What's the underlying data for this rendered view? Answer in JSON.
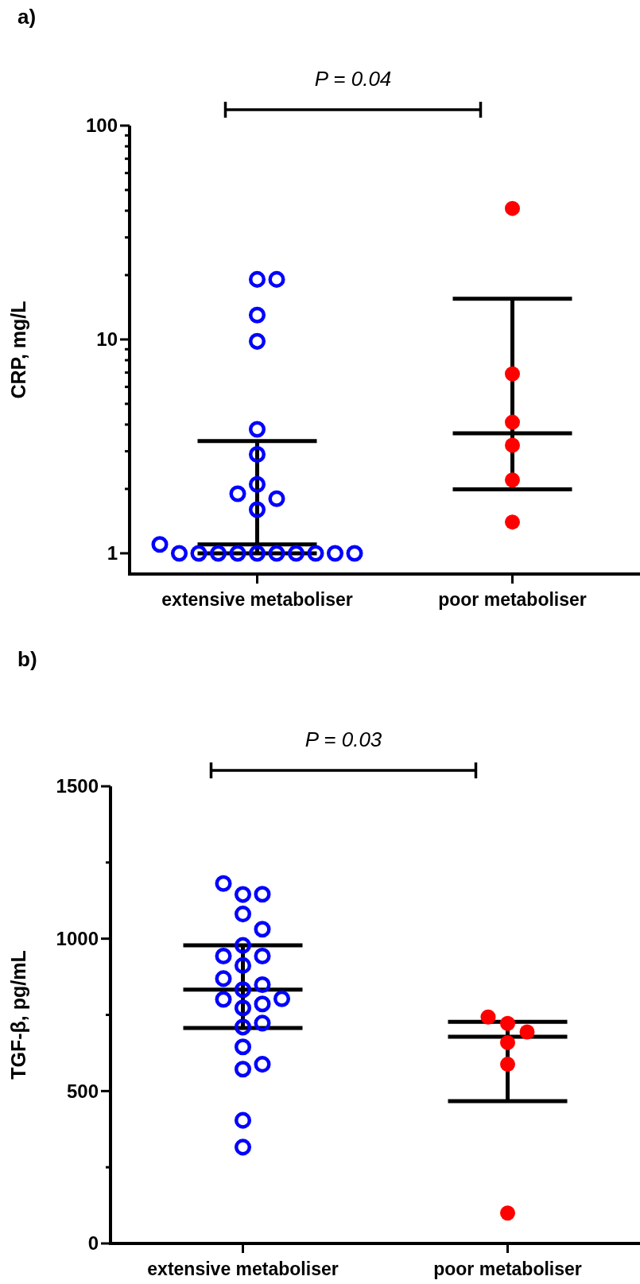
{
  "chart_data": [
    {
      "type": "scatter",
      "title": "a)",
      "ylabel": "CRP, mg/L",
      "log": "y",
      "categories": [
        "extensive metaboliser",
        "poor metaboliser"
      ],
      "ylim": [
        0.8,
        100
      ],
      "yticks": [
        1,
        {
          "value": 2,
          "label": null
        },
        {
          "value": 3,
          "label": null
        },
        {
          "value": 4,
          "label": null
        },
        {
          "value": 5,
          "label": null
        },
        {
          "value": 6,
          "label": null
        },
        {
          "value": 7,
          "label": null
        },
        {
          "value": 8,
          "label": null
        },
        {
          "value": 9,
          "label": null
        },
        10,
        {
          "value": 20,
          "label": null
        },
        {
          "value": 30,
          "label": null
        },
        {
          "value": 40,
          "label": null
        },
        {
          "value": 50,
          "label": null
        },
        {
          "value": 60,
          "label": null
        },
        {
          "value": 70,
          "label": null
        },
        {
          "value": 80,
          "label": null
        },
        {
          "value": 90,
          "label": null
        },
        100
      ],
      "annotations": [
        "P = 0.04"
      ],
      "marker": "circle",
      "series": [
        {
          "color": "#0000ff",
          "x": [
            "extensive metaboliser",
            "extensive metaboliser",
            "extensive metaboliser",
            "extensive metaboliser",
            "extensive metaboliser",
            "extensive metaboliser",
            "extensive metaboliser",
            "extensive metaboliser",
            "extensive metaboliser",
            "extensive metaboliser",
            "extensive metaboliser",
            "extensive metaboliser",
            "extensive metaboliser",
            "extensive metaboliser",
            "extensive metaboliser",
            "extensive metaboliser",
            "extensive metaboliser",
            "extensive metaboliser",
            "extensive metaboliser",
            "extensive metaboliser",
            "extensive metaboliser"
          ],
          "values": [
            19.1,
            19.1,
            13,
            9.8,
            3.8,
            2.9,
            2.1,
            1.9,
            1.8,
            1.6,
            1.1,
            1,
            1,
            1,
            1,
            1,
            1,
            1,
            1,
            1,
            1
          ]
        },
        {
          "color": "#ff0000",
          "x": [
            "poor metaboliser",
            "poor metaboliser",
            "poor metaboliser",
            "poor metaboliser",
            "poor metaboliser",
            "poor metaboliser"
          ],
          "values": [
            41,
            6.9,
            4.1,
            3.2,
            2.2,
            1.4
          ]
        },
        {
          "type": "box",
          "color": "#000000",
          "boxes": [
            {
              "low": 1,
              "q1": 1,
              "median": 1.1,
              "q3": 3.35,
              "high": 3.35
            },
            {
              "low": 1.99,
              "q1": 1.99,
              "median": 3.64,
              "q3": 15.5,
              "high": 15.5
            }
          ]
        }
      ]
    },
    {
      "type": "scatter",
      "title": "b)",
      "ylabel": "TGF-β, pg/mL",
      "categories": [
        "extensive metaboliser",
        "poor metaboliser"
      ],
      "ylim": [
        0,
        1500
      ],
      "yticks": [
        0,
        {
          "value": 250,
          "label": null
        },
        500,
        {
          "value": 750,
          "label": null
        },
        1000,
        {
          "value": 1250,
          "label": null
        },
        1500
      ],
      "annotations": [
        "P = 0.03"
      ],
      "marker": "circle",
      "series": [
        {
          "color": "#0000ff",
          "x": [
            "extensive metaboliser",
            "extensive metaboliser",
            "extensive metaboliser",
            "extensive metaboliser",
            "extensive metaboliser",
            "extensive metaboliser",
            "extensive metaboliser",
            "extensive metaboliser",
            "extensive metaboliser",
            "extensive metaboliser",
            "extensive metaboliser",
            "extensive metaboliser",
            "extensive metaboliser",
            "extensive metaboliser",
            "extensive metaboliser",
            "extensive metaboliser",
            "extensive metaboliser",
            "extensive metaboliser",
            "extensive metaboliser",
            "extensive metaboliser",
            "extensive metaboliser",
            "extensive metaboliser",
            "extensive metaboliser"
          ],
          "values": [
            1181,
            1146,
            1145,
            1081,
            1031,
            978,
            943,
            943,
            912,
            869,
            849,
            833,
            803,
            801,
            786,
            773,
            723,
            710,
            645,
            588,
            572,
            404,
            316
          ]
        },
        {
          "color": "#ff0000",
          "x": [
            "poor metaboliser",
            "poor metaboliser",
            "poor metaboliser",
            "poor metaboliser",
            "poor metaboliser",
            "poor metaboliser"
          ],
          "values": [
            743,
            722,
            694,
            659,
            588,
            100
          ]
        },
        {
          "type": "box",
          "color": "#000000",
          "boxes": [
            {
              "low": 707,
              "q1": 707,
              "median": 833,
              "q3": 978,
              "high": 978
            },
            {
              "low": 467,
              "q1": 467,
              "median": 678,
              "q3": 727,
              "high": 727
            }
          ]
        }
      ]
    }
  ]
}
